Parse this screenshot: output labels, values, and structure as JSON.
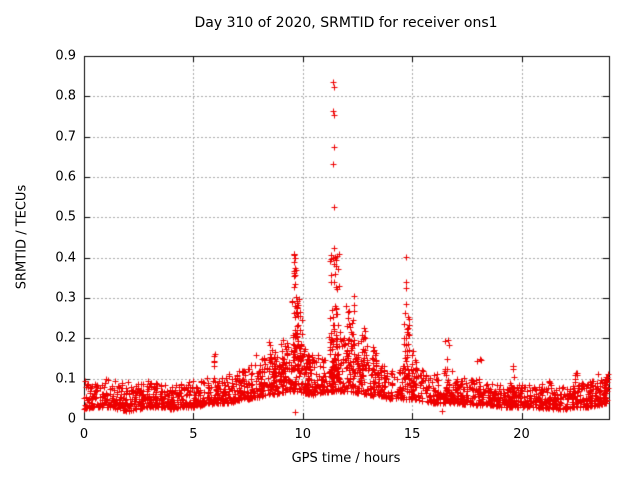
{
  "page": {
    "background": "#ffffff",
    "text_color": "#000000"
  },
  "chart_data": {
    "type": "scatter",
    "title": "Day 310 of 2020, SRMTID for receiver ons1",
    "xlabel": "GPS time / hours",
    "ylabel": "SRMTID / TECUs",
    "xlim": [
      0,
      24
    ],
    "ylim": [
      0,
      0.9
    ],
    "xticks": [
      "0",
      "5",
      "10",
      "15",
      "20"
    ],
    "yticks": [
      "0",
      "0.1",
      "0.2",
      "0.3",
      "0.4",
      "0.5",
      "0.6",
      "0.7",
      "0.8",
      "0.9"
    ],
    "grid": true,
    "legend": "none",
    "marker": {
      "shape": "plus",
      "size": 7,
      "color": "#ee0000"
    },
    "axis_color": "#000000",
    "grid_color": "#aaaaaa",
    "seed": 310,
    "n_baseline": 2100,
    "x_end": 23.95,
    "tip_frac": 0.05,
    "tip_boost": 1.15,
    "envelope": [
      [
        0,
        0.025,
        0.095
      ],
      [
        0.5,
        0.03,
        0.09
      ],
      [
        1,
        0.03,
        0.1
      ],
      [
        1.5,
        0.025,
        0.095
      ],
      [
        2,
        0.02,
        0.085
      ],
      [
        2.5,
        0.025,
        0.09
      ],
      [
        3,
        0.03,
        0.095
      ],
      [
        3.5,
        0.03,
        0.09
      ],
      [
        4,
        0.025,
        0.085
      ],
      [
        4.5,
        0.03,
        0.09
      ],
      [
        5,
        0.03,
        0.1
      ],
      [
        5.5,
        0.035,
        0.1
      ],
      [
        6,
        0.04,
        0.11
      ],
      [
        6.5,
        0.04,
        0.11
      ],
      [
        7,
        0.045,
        0.12
      ],
      [
        7.5,
        0.05,
        0.13
      ],
      [
        8,
        0.055,
        0.15
      ],
      [
        8.5,
        0.06,
        0.17
      ],
      [
        9,
        0.065,
        0.19
      ],
      [
        9.5,
        0.07,
        0.21
      ],
      [
        9.8,
        0.07,
        0.22
      ],
      [
        10,
        0.065,
        0.18
      ],
      [
        10.5,
        0.06,
        0.16
      ],
      [
        11,
        0.065,
        0.17
      ],
      [
        11.5,
        0.07,
        0.22
      ],
      [
        12,
        0.07,
        0.21
      ],
      [
        12.5,
        0.065,
        0.19
      ],
      [
        13,
        0.06,
        0.16
      ],
      [
        13.5,
        0.055,
        0.14
      ],
      [
        14,
        0.05,
        0.13
      ],
      [
        14.5,
        0.05,
        0.13
      ],
      [
        15,
        0.05,
        0.135
      ],
      [
        15.5,
        0.045,
        0.12
      ],
      [
        16,
        0.04,
        0.11
      ],
      [
        16.5,
        0.04,
        0.115
      ],
      [
        17,
        0.04,
        0.1
      ],
      [
        17.5,
        0.035,
        0.095
      ],
      [
        18,
        0.035,
        0.1
      ],
      [
        18.5,
        0.035,
        0.09
      ],
      [
        19,
        0.03,
        0.085
      ],
      [
        19.5,
        0.03,
        0.09
      ],
      [
        20,
        0.03,
        0.085
      ],
      [
        20.5,
        0.028,
        0.08
      ],
      [
        21,
        0.028,
        0.08
      ],
      [
        21.5,
        0.025,
        0.078
      ],
      [
        22,
        0.025,
        0.08
      ],
      [
        22.5,
        0.03,
        0.09
      ],
      [
        23,
        0.03,
        0.09
      ],
      [
        23.5,
        0.035,
        0.1
      ],
      [
        23.95,
        0.04,
        0.105
      ]
    ],
    "clusters": [
      [
        5.9,
        0.08,
        0.08,
        0.175,
        7,
        1.2
      ],
      [
        8.4,
        0.3,
        0.08,
        0.19,
        30,
        1.5
      ],
      [
        9.1,
        0.2,
        0.09,
        0.2,
        25,
        1.5
      ],
      [
        9.65,
        0.15,
        0.12,
        0.3,
        40,
        1.5
      ],
      [
        9.63,
        0.05,
        0.28,
        0.41,
        12,
        1.0
      ],
      [
        9.85,
        0.12,
        0.12,
        0.3,
        30,
        1.5
      ],
      [
        10.2,
        0.15,
        0.08,
        0.2,
        20,
        1.5
      ],
      [
        11.45,
        0.22,
        0.1,
        0.42,
        70,
        2.2
      ],
      [
        12.15,
        0.2,
        0.12,
        0.31,
        40,
        1.5
      ],
      [
        12.8,
        0.15,
        0.1,
        0.23,
        18,
        1.4
      ],
      [
        13.3,
        0.15,
        0.08,
        0.18,
        15,
        1.4
      ],
      [
        14.75,
        0.12,
        0.1,
        0.31,
        30,
        1.6
      ],
      [
        15.1,
        0.1,
        0.07,
        0.17,
        12,
        1.4
      ],
      [
        16.6,
        0.12,
        0.07,
        0.2,
        14,
        1.4
      ],
      [
        18.05,
        0.1,
        0.06,
        0.155,
        10,
        1.3
      ],
      [
        19.6,
        0.08,
        0.05,
        0.135,
        8,
        1.2
      ],
      [
        21.3,
        0.1,
        0.04,
        0.1,
        8,
        1.2
      ],
      [
        22.5,
        0.12,
        0.05,
        0.125,
        10,
        1.2
      ],
      [
        23.35,
        0.15,
        0.04,
        0.115,
        12,
        1.2
      ],
      [
        23.85,
        0.1,
        0.05,
        0.11,
        10,
        1.2
      ]
    ],
    "outliers": [
      [
        11.39,
        0.835
      ],
      [
        11.43,
        0.822
      ],
      [
        11.39,
        0.763
      ],
      [
        11.43,
        0.753
      ],
      [
        11.41,
        0.675
      ],
      [
        11.39,
        0.632
      ],
      [
        11.41,
        0.525
      ],
      [
        11.42,
        0.424
      ],
      [
        11.36,
        0.4
      ],
      [
        9.62,
        0.406
      ],
      [
        9.66,
        0.398
      ],
      [
        9.58,
        0.39
      ],
      [
        14.72,
        0.402
      ],
      [
        14.7,
        0.34
      ],
      [
        14.73,
        0.325
      ],
      [
        9.64,
        0.018
      ],
      [
        16.35,
        0.02
      ]
    ]
  }
}
